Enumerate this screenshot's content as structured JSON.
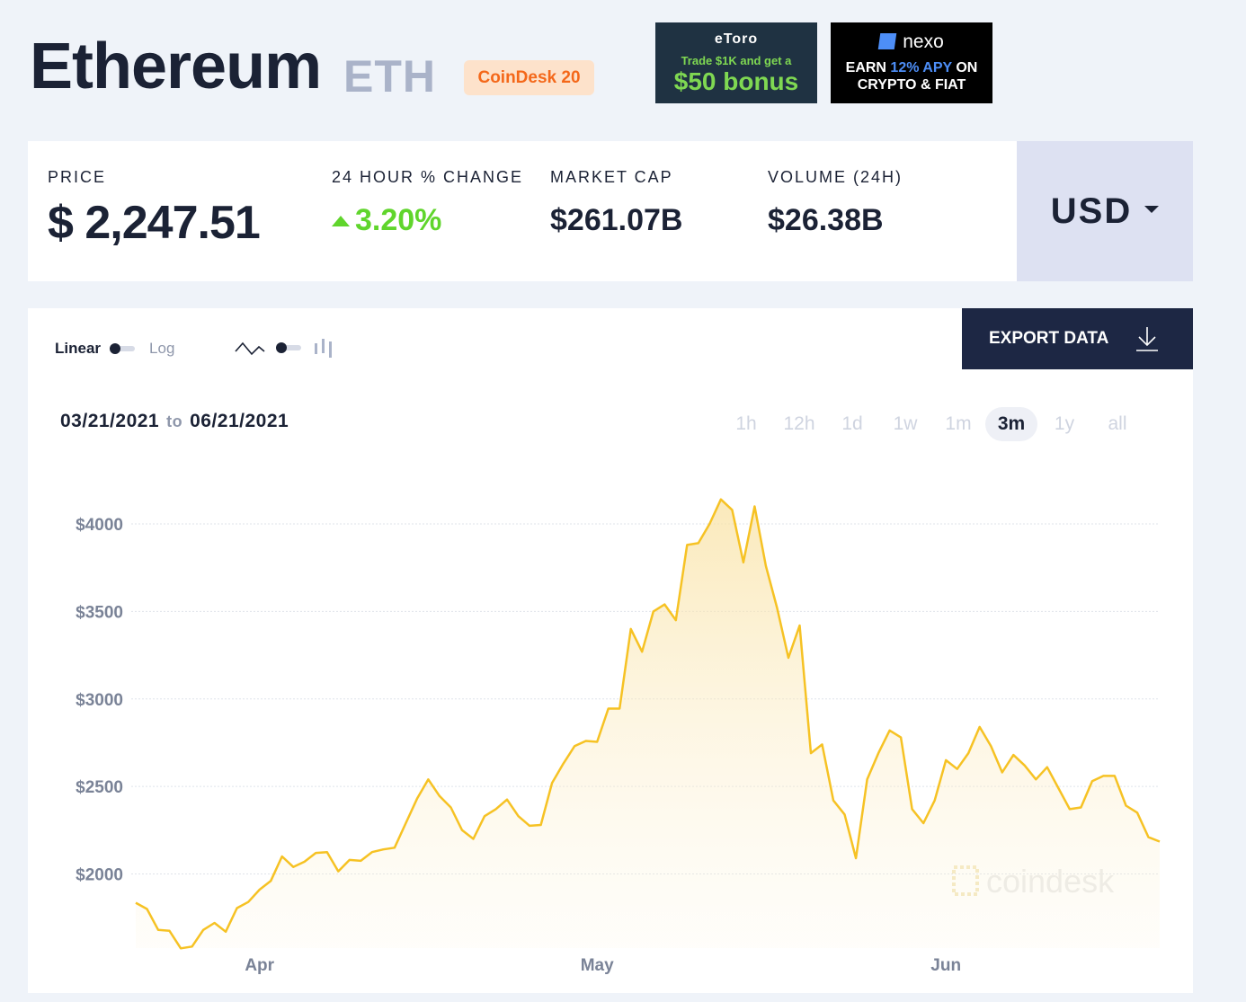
{
  "header": {
    "title": "Ethereum",
    "symbol": "ETH",
    "badge": "CoinDesk 20"
  },
  "ads": {
    "etoro": {
      "brand": "eToro",
      "line1": "Trade $1K and get a",
      "line2": "$50 bonus"
    },
    "nexo": {
      "brand": "nexo",
      "line1_pre": "EARN ",
      "line1_hl": "12% APY",
      "line1_post": " ON",
      "line2": "CRYPTO & FIAT"
    }
  },
  "stats": {
    "price_label": "PRICE",
    "price_value": "$ 2,247.51",
    "change_label": "24 HOUR % CHANGE",
    "change_value": "3.20%",
    "mcap_label": "MARKET CAP",
    "mcap_value": "$261.07B",
    "volume_label": "VOLUME (24H)",
    "volume_value": "$26.38B"
  },
  "currency": "USD",
  "controls": {
    "linear_label": "Linear",
    "log_label": "Log",
    "export_label": "EXPORT DATA",
    "range_start": "03/21/2021",
    "range_to": "to",
    "range_end": "06/21/2021",
    "periods": [
      "1h",
      "12h",
      "1d",
      "1w",
      "1m",
      "3m",
      "1y",
      "all"
    ],
    "active_period": "3m"
  },
  "watermark": "coindesk",
  "colors": {
    "line": "#f6c224",
    "up": "#60d52c",
    "navy": "#1d2744"
  },
  "chart_data": {
    "type": "area",
    "ylim": [
      1600,
      4200
    ],
    "yticks": [
      2000,
      2500,
      3000,
      3500,
      4000
    ],
    "ytick_labels": [
      "$2000",
      "$2500",
      "$3000",
      "$3500",
      "$4000"
    ],
    "xtick_labels": [
      {
        "label": "Apr",
        "day": 11
      },
      {
        "label": "May",
        "day": 41
      },
      {
        "label": "Jun",
        "day": 72
      }
    ],
    "x_start": "03/21/2021",
    "series": [
      {
        "values": [
          1835,
          1800,
          1680,
          1675,
          1575,
          1585,
          1680,
          1720,
          1670,
          1805,
          1840,
          1910,
          1960,
          2100,
          2040,
          2070,
          2120,
          2125,
          2015,
          2080,
          2075,
          2125,
          2140,
          2150,
          2290,
          2430,
          2540,
          2445,
          2380,
          2250,
          2200,
          2330,
          2370,
          2425,
          2330,
          2275,
          2280,
          2520,
          2630,
          2730,
          2760,
          2755,
          2945,
          2945,
          3400,
          3270,
          3500,
          3540,
          3450,
          3880,
          3890,
          4000,
          4140,
          4080,
          3780,
          4100,
          3760,
          3520,
          3235,
          3420,
          2690,
          2740,
          2420,
          2340,
          2090,
          2540,
          2690,
          2820,
          2780,
          2370,
          2290,
          2420,
          2650,
          2600,
          2690,
          2840,
          2730,
          2580,
          2680,
          2620,
          2540,
          2610,
          2490,
          2370,
          2380,
          2530,
          2560,
          2560,
          2390,
          2350,
          2210,
          2185
        ]
      }
    ]
  }
}
